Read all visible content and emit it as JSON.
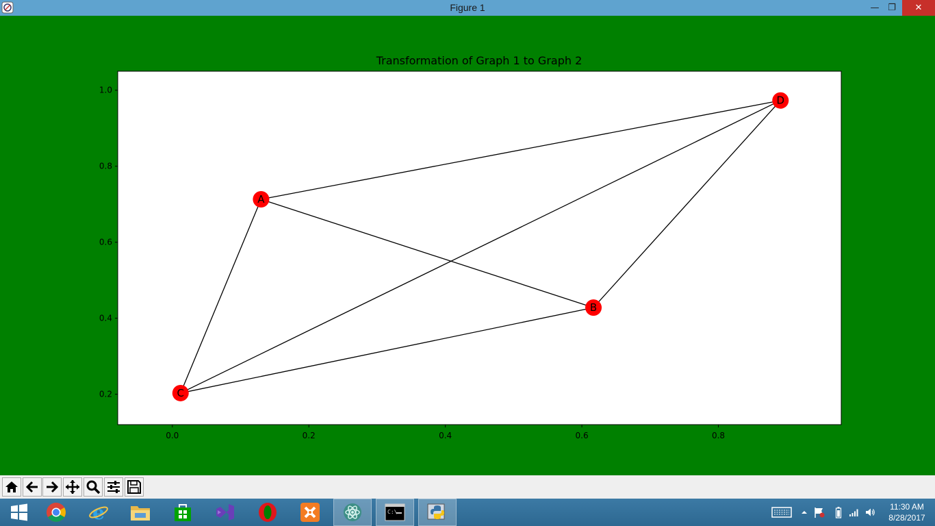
{
  "window": {
    "title": "Figure 1",
    "minimize_label": "—",
    "maximize_label": "❐",
    "close_label": "✕"
  },
  "figure": {
    "background_color": "#008000",
    "node_color": "#ff0000",
    "edge_color": "#000000"
  },
  "chart_data": {
    "type": "scatter",
    "title": "Transformation of Graph 1 to Graph 2",
    "xlabel": "",
    "ylabel": "",
    "xlim": [
      -0.08,
      0.98
    ],
    "ylim": [
      0.12,
      1.05
    ],
    "xticks": [
      0.0,
      0.2,
      0.4,
      0.6,
      0.8
    ],
    "xtick_labels": [
      "0.0",
      "0.2",
      "0.4",
      "0.6",
      "0.8"
    ],
    "yticks": [
      0.2,
      0.4,
      0.6,
      0.8,
      1.0
    ],
    "ytick_labels": [
      "0.2",
      "0.4",
      "0.6",
      "0.8",
      "1.0"
    ],
    "grid": false,
    "nodes": [
      {
        "label": "A",
        "x": 0.13,
        "y": 0.713
      },
      {
        "label": "B",
        "x": 0.617,
        "y": 0.428
      },
      {
        "label": "C",
        "x": 0.012,
        "y": 0.203
      },
      {
        "label": "D",
        "x": 0.891,
        "y": 0.973
      }
    ],
    "edges": [
      [
        "A",
        "D"
      ],
      [
        "A",
        "B"
      ],
      [
        "A",
        "C"
      ],
      [
        "B",
        "C"
      ],
      [
        "B",
        "D"
      ],
      [
        "C",
        "D"
      ]
    ]
  },
  "toolbar": {
    "buttons": [
      {
        "name": "home",
        "icon": "home-icon"
      },
      {
        "name": "back",
        "icon": "arrow-left-icon"
      },
      {
        "name": "forward",
        "icon": "arrow-right-icon"
      },
      {
        "name": "pan",
        "icon": "move-icon"
      },
      {
        "name": "zoom",
        "icon": "magnifier-icon"
      },
      {
        "name": "configure-subplots",
        "icon": "sliders-icon"
      },
      {
        "name": "save",
        "icon": "floppy-disk-icon"
      }
    ]
  },
  "taskbar": {
    "start_icon": "windows-logo-icon",
    "apps": [
      {
        "name": "chrome",
        "icon": "chrome-icon"
      },
      {
        "name": "internet-explorer",
        "icon": "ie-icon"
      },
      {
        "name": "file-explorer",
        "icon": "folder-icon"
      },
      {
        "name": "store",
        "icon": "store-icon"
      },
      {
        "name": "visual-studio",
        "icon": "visual-studio-icon"
      },
      {
        "name": "opera",
        "icon": "opera-icon"
      },
      {
        "name": "xampp",
        "icon": "xampp-icon"
      },
      {
        "name": "atom",
        "icon": "atom-icon"
      },
      {
        "name": "command-prompt",
        "icon": "cmd-icon"
      },
      {
        "name": "python",
        "icon": "python-icon"
      }
    ],
    "tray_icons": [
      "keyboard-icon",
      "chevron-up-icon",
      "flag-icon",
      "battery-icon",
      "signal-icon",
      "speaker-icon"
    ],
    "clock": {
      "time": "11:30 AM",
      "date": "8/28/2017"
    }
  }
}
